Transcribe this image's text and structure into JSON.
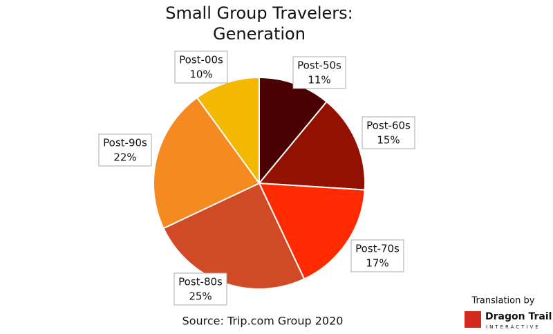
{
  "chart_data": {
    "type": "pie",
    "title": [
      "Small Group Travelers:",
      "Generation"
    ],
    "categories": [
      "Post-50s",
      "Post-60s",
      "Post-70s",
      "Post-80s",
      "Post-90s",
      "Post-00s"
    ],
    "values": [
      11,
      15,
      17,
      25,
      22,
      10
    ],
    "value_labels": [
      "11%",
      "15%",
      "17%",
      "25%",
      "22%",
      "10%"
    ],
    "colors": [
      "#4a0202",
      "#931100",
      "#ff2a00",
      "#d04a25",
      "#f58a20",
      "#f5b800"
    ],
    "source": "Source: Trip.com Group 2020"
  },
  "footer": {
    "translation": "Translation by",
    "brand": "Dragon Trail",
    "tagline": "INTERACTIVE"
  }
}
